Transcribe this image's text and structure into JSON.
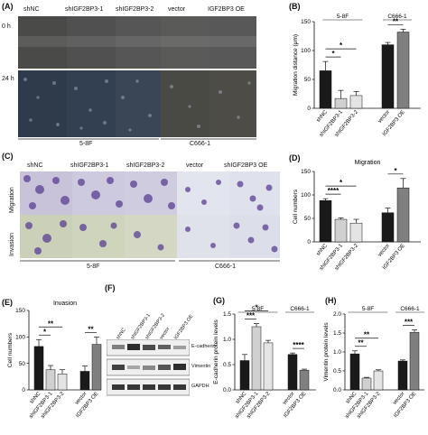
{
  "panels": {
    "A": {
      "label": "(A)",
      "columns": [
        "shNC",
        "shIGF2BP3-1",
        "shIGF2BP3-2",
        "vector",
        "IGF2BP3 OE"
      ],
      "rows": [
        "0 h",
        "24 h"
      ],
      "groups": [
        "5-8F",
        "C666-1"
      ]
    },
    "B": {
      "label": "(B)"
    },
    "C": {
      "label": "(C)",
      "columns": [
        "shNC",
        "shIGF2BP3-1",
        "shIGF2BP3-2",
        "vector",
        "shIGF2BP3 OE"
      ],
      "rows": [
        "Migration",
        "Invasion"
      ],
      "groups": [
        "5-8F",
        "C666-1"
      ]
    },
    "D": {
      "label": "(D)"
    },
    "E": {
      "label": "(E)"
    },
    "F": {
      "label": "(F)",
      "lanes": [
        "shNC",
        "shIGF2BP3-1",
        "shIGF2BP3-2",
        "vector",
        "IGF2BP3 OE"
      ],
      "bands": [
        "E-cadherin",
        "Vimentin",
        "GAPDH"
      ]
    },
    "G": {
      "label": "(G)"
    },
    "H": {
      "label": "(H)"
    }
  },
  "colors": {
    "dark": "#1a1a1a",
    "mid": "#808080",
    "light": "#d0d0d0",
    "lightest": "#e4e4e4"
  },
  "chart_data": [
    {
      "id": "B",
      "type": "bar",
      "groups": [
        "5-8F",
        "C666-1"
      ],
      "categories": [
        "shNC",
        "shIGF2BP3-1",
        "shIGF2BP3-2",
        "vector",
        "IGF2BP3 OE"
      ],
      "values": [
        65,
        17,
        22,
        110,
        132
      ],
      "errors": [
        16,
        14,
        7,
        4,
        5
      ],
      "ylabel": "Migration distance (μm)",
      "ylim": [
        0,
        150
      ],
      "yticks": [
        0,
        50,
        100,
        150
      ],
      "sig": [
        {
          "from": 0,
          "to": 1,
          "text": "*",
          "level": 0
        },
        {
          "from": 0,
          "to": 2,
          "text": "*",
          "level": 1
        },
        {
          "from": 3,
          "to": 4,
          "text": "**",
          "level": 0
        }
      ]
    },
    {
      "id": "D",
      "type": "bar",
      "title": "Migration",
      "categories": [
        "shNC",
        "shIGF2BP3-1",
        "shIGF2BP3-2",
        "vector",
        "IGF2BP3 OE"
      ],
      "values": [
        88,
        48,
        40,
        62,
        115
      ],
      "errors": [
        4,
        3,
        8,
        10,
        20
      ],
      "ylabel": "Cell numbers",
      "ylim": [
        0,
        150
      ],
      "yticks": [
        0,
        50,
        100,
        150
      ],
      "sig": [
        {
          "from": 0,
          "to": 1,
          "text": "****",
          "level": 0
        },
        {
          "from": 0,
          "to": 2,
          "text": "*",
          "level": 1
        },
        {
          "from": 3,
          "to": 4,
          "text": "*",
          "level": 0
        }
      ]
    },
    {
      "id": "E",
      "type": "bar",
      "title": "Invasion",
      "categories": [
        "shNC",
        "shIGF2BP3-1",
        "shIGF2BP3-2",
        "vector",
        "IGF2BP3 OE"
      ],
      "values": [
        82,
        38,
        30,
        35,
        86
      ],
      "errors": [
        13,
        8,
        8,
        10,
        14
      ],
      "ylabel": "Cell numbers",
      "ylim": [
        0,
        150
      ],
      "yticks": [
        0,
        50,
        100,
        150
      ],
      "sig": [
        {
          "from": 0,
          "to": 1,
          "text": "*",
          "level": 0
        },
        {
          "from": 0,
          "to": 2,
          "text": "**",
          "level": 1
        },
        {
          "from": 3,
          "to": 4,
          "text": "**",
          "level": 0
        }
      ]
    },
    {
      "id": "G",
      "type": "bar",
      "groups": [
        "5-8F",
        "C666-1"
      ],
      "categories": [
        "shNC",
        "shIGF2BP3-1",
        "shIGF2BP3-2",
        "vector",
        "IGF2BP3 OE"
      ],
      "values": [
        0.58,
        1.25,
        0.93,
        0.7,
        0.39
      ],
      "errors": [
        0.12,
        0.06,
        0.05,
        0.03,
        0.02
      ],
      "ylabel": "E-cadherin protein levels",
      "ylim": [
        0,
        1.5
      ],
      "yticks": [
        0,
        0.5,
        1.0,
        1.5
      ],
      "sig": [
        {
          "from": 0,
          "to": 1,
          "text": "***",
          "level": 0
        },
        {
          "from": 0,
          "to": 2,
          "text": "*",
          "level": 1
        },
        {
          "from": 3,
          "to": 4,
          "text": "****",
          "level": 0
        }
      ]
    },
    {
      "id": "H",
      "type": "bar",
      "groups": [
        "5-8F",
        "C666-1"
      ],
      "categories": [
        "shNC",
        "shIGF2BP3-1",
        "shIGF2BP3-2",
        "vector",
        "IGF2BP3 OE"
      ],
      "values": [
        0.95,
        0.31,
        0.5,
        0.76,
        1.52
      ],
      "errors": [
        0.08,
        0.02,
        0.03,
        0.03,
        0.06
      ],
      "ylabel": "Vimentin protein levels",
      "ylim": [
        0,
        2.0
      ],
      "yticks": [
        0,
        0.5,
        1.0,
        1.5,
        2.0
      ],
      "sig": [
        {
          "from": 0,
          "to": 1,
          "text": "**",
          "level": 0
        },
        {
          "from": 0,
          "to": 2,
          "text": "**",
          "level": 1
        },
        {
          "from": 3,
          "to": 4,
          "text": "***",
          "level": 0
        }
      ]
    }
  ]
}
